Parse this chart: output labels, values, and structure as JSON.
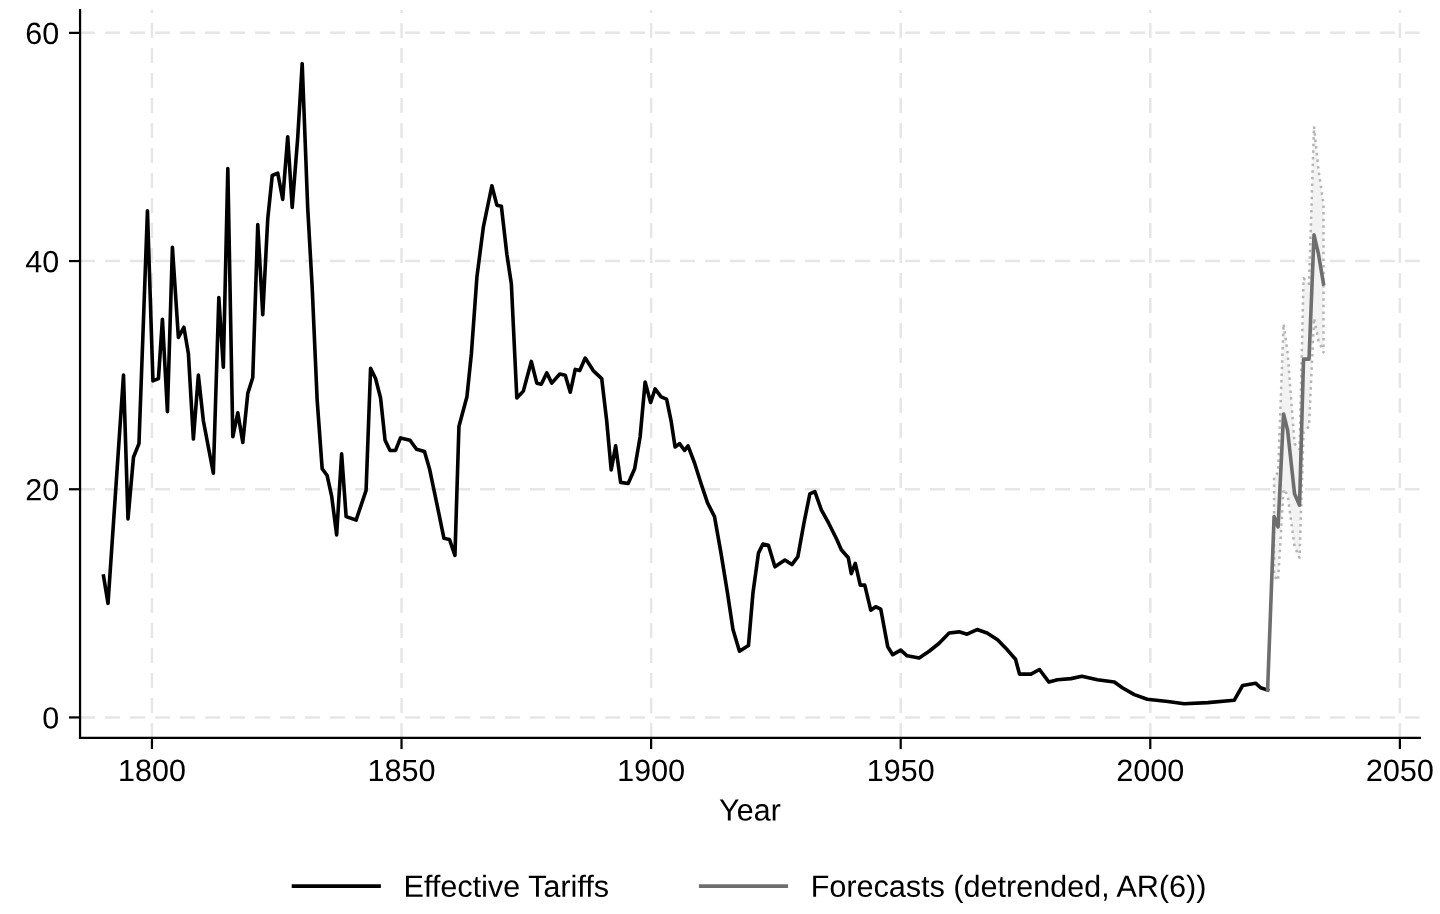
{
  "chart_data": {
    "type": "line",
    "xlabel": "Year",
    "xlim": [
      1785.6,
      2054
    ],
    "ylim": [
      -1.8,
      62
    ],
    "xticks": [
      1800,
      1850,
      1900,
      1950,
      2000,
      2050
    ],
    "yticks": [
      0,
      20,
      40,
      60
    ],
    "grid": true,
    "legend": "bottom",
    "line_style": "solid",
    "marker": "none",
    "series": [
      {
        "name": "Effective Tariffs",
        "color": "#000000",
        "x": [
          1790.3,
          1791.2,
          1794.3,
          1795.2,
          1796.3,
          1797.4,
          1799.1,
          1800.2,
          1801.3,
          1802.1,
          1803.1,
          1804.1,
          1805.3,
          1806.4,
          1807.3,
          1808.3,
          1809.3,
          1810.3,
          1812.3,
          1813.4,
          1814.3,
          1815.2,
          1816.2,
          1817.2,
          1818.2,
          1819.2,
          1820.2,
          1821.2,
          1822.2,
          1823.2,
          1824.1,
          1825.2,
          1826.2,
          1827.2,
          1828.1,
          1829.2,
          1830.1,
          1831.2,
          1832.1,
          1833.1,
          1834.1,
          1835.1,
          1836.0,
          1837.0,
          1838.0,
          1838.9,
          1840.9,
          1842.9,
          1843.8,
          1844.8,
          1845.8,
          1846.7,
          1847.7,
          1848.8,
          1849.8,
          1851.7,
          1853.0,
          1854.6,
          1855.6,
          1856.9,
          1858.5,
          1859.6,
          1860.7,
          1861.5,
          1863.1,
          1864.0,
          1865.1,
          1866.4,
          1868.1,
          1869.1,
          1870.0,
          1871.1,
          1872.0,
          1873.1,
          1874.4,
          1876.0,
          1877.1,
          1878.0,
          1879.1,
          1880.1,
          1881.7,
          1882.8,
          1883.8,
          1884.8,
          1885.7,
          1886.8,
          1888.4,
          1890.1,
          1891.1,
          1892.0,
          1892.9,
          1893.9,
          1895.4,
          1896.7,
          1897.8,
          1898.8,
          1899.9,
          1900.8,
          1902.0,
          1903.1,
          1904.0,
          1904.8,
          1905.7,
          1906.7,
          1907.4,
          1908.7,
          1910.0,
          1911.3,
          1912.7,
          1914.0,
          1915.3,
          1916.4,
          1917.7,
          1919.5,
          1920.4,
          1921.5,
          1922.4,
          1923.5,
          1924.8,
          1926.8,
          1928.2,
          1929.4,
          1930.6,
          1931.8,
          1932.8,
          1934.1,
          1935.6,
          1937.2,
          1938.1,
          1939.5,
          1940.1,
          1940.9,
          1941.9,
          1942.8,
          1944.0,
          1945.0,
          1946.0,
          1947.4,
          1948.4,
          1950.0,
          1951.3,
          1953.7,
          1955.7,
          1957.7,
          1959.7,
          1961.7,
          1963.3,
          1965.3,
          1967.3,
          1969.4,
          1971.4,
          1973.0,
          1973.8,
          1976.1,
          1977.8,
          1979.7,
          1981.4,
          1984.1,
          1986.3,
          1989.4,
          1992.8,
          1994.4,
          1996.8,
          1999.4,
          2003.5,
          2006.8,
          2011.5,
          2016.8,
          2018.5,
          2021.1,
          2022.1,
          2023.5
        ],
        "values": [
          12.4,
          10.0,
          30.0,
          17.4,
          22.8,
          24.0,
          44.4,
          29.5,
          29.7,
          34.9,
          26.8,
          41.2,
          33.3,
          34.2,
          31.9,
          24.4,
          30.0,
          26.0,
          21.4,
          36.8,
          30.7,
          48.1,
          24.6,
          26.7,
          24.1,
          28.4,
          29.8,
          43.2,
          35.3,
          43.7,
          47.5,
          47.7,
          45.4,
          50.9,
          44.7,
          50.8,
          57.3,
          44.7,
          37.7,
          27.8,
          21.8,
          21.2,
          19.4,
          16.0,
          23.1,
          17.6,
          17.3,
          19.9,
          30.6,
          29.7,
          28.0,
          24.3,
          23.4,
          23.4,
          24.5,
          24.3,
          23.5,
          23.3,
          21.8,
          19.1,
          15.7,
          15.6,
          14.2,
          25.5,
          28.1,
          31.9,
          38.6,
          43.0,
          46.6,
          44.9,
          44.8,
          40.6,
          38.0,
          28.0,
          28.6,
          31.2,
          29.3,
          29.2,
          30.2,
          29.3,
          30.1,
          30.0,
          28.5,
          30.5,
          30.4,
          31.5,
          30.4,
          29.7,
          26.0,
          21.7,
          23.8,
          20.6,
          20.5,
          21.8,
          24.6,
          29.4,
          27.6,
          28.8,
          28.1,
          27.9,
          26.0,
          23.7,
          24.0,
          23.4,
          23.8,
          22.3,
          20.5,
          18.8,
          17.6,
          14.4,
          10.9,
          7.7,
          5.8,
          6.3,
          10.9,
          14.4,
          15.2,
          15.1,
          13.2,
          13.8,
          13.4,
          14.1,
          17.0,
          19.6,
          19.8,
          18.2,
          17.0,
          15.6,
          14.7,
          14.0,
          12.6,
          13.5,
          11.6,
          11.6,
          9.4,
          9.7,
          9.5,
          6.2,
          5.5,
          5.9,
          5.4,
          5.2,
          5.8,
          6.5,
          7.4,
          7.5,
          7.3,
          7.7,
          7.4,
          6.8,
          5.9,
          5.1,
          3.8,
          3.8,
          4.2,
          3.1,
          3.3,
          3.4,
          3.6,
          3.3,
          3.1,
          2.6,
          2.0,
          1.6,
          1.4,
          1.2,
          1.3,
          1.5,
          2.8,
          3.0,
          2.6,
          2.4
        ]
      },
      {
        "name": "Forecasts (detrended, AR(6))",
        "color": "#6e6e6e",
        "x": [
          2023.5,
          2024.8,
          2025.6,
          2026.7,
          2027.5,
          2028.9,
          2029.9,
          2030.7,
          2031.8,
          2032.8,
          2033.7,
          2034.7
        ],
        "values": [
          2.4,
          17.6,
          16.7,
          26.6,
          25.2,
          19.6,
          18.6,
          31.4,
          31.4,
          42.3,
          40.6,
          38.0
        ],
        "lower": [
          null,
          12.4,
          12.0,
          20.0,
          19.5,
          15.0,
          14.0,
          25.0,
          25.5,
          35.0,
          33.0,
          32.0
        ],
        "upper": [
          null,
          21.0,
          21.5,
          34.5,
          32.0,
          24.0,
          23.5,
          38.5,
          38.0,
          51.8,
          48.0,
          45.0
        ]
      }
    ]
  }
}
